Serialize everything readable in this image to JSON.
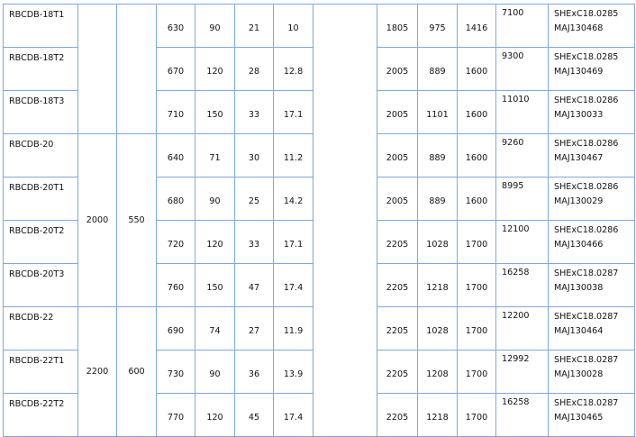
{
  "table": {
    "rows": [
      {
        "model": "RBCDB-18T1",
        "c4": "630",
        "c5": "90",
        "c6": "21",
        "c7": "10",
        "c9": "1805",
        "c10": "975",
        "c11": "1416",
        "weight": "7100",
        "cert1": "SHExC18.0285",
        "cert2": "MAJ130468"
      },
      {
        "model": "RBCDB-18T2",
        "c4": "670",
        "c5": "120",
        "c6": "28",
        "c7": "12.8",
        "c9": "2005",
        "c10": "889",
        "c11": "1600",
        "weight": "9300",
        "cert1": "SHExC18.0285",
        "cert2": "MAJ130469"
      },
      {
        "model": "RBCDB-18T3",
        "c4": "710",
        "c5": "150",
        "c6": "33",
        "c7": "17.1",
        "c9": "2005",
        "c10": "1101",
        "c11": "1600",
        "weight": "11010",
        "cert1": "SHExC18.0286",
        "cert2": "MAJ130033"
      },
      {
        "model": "RBCDB-20",
        "c4": "640",
        "c5": "71",
        "c6": "30",
        "c7": "11.2",
        "c9": "2005",
        "c10": "889",
        "c11": "1600",
        "weight": "9260",
        "cert1": "SHExC18.0286",
        "cert2": "MAJ130467"
      },
      {
        "model": "RBCDB-20T1",
        "c4": "680",
        "c5": "90",
        "c6": "25",
        "c7": "14.2",
        "c9": "2005",
        "c10": "889",
        "c11": "1600",
        "weight": "8995",
        "cert1": "SHExC18.0286",
        "cert2": "MAJ130029"
      },
      {
        "model": "RBCDB-20T2",
        "c4": "720",
        "c5": "120",
        "c6": "33",
        "c7": "17.1",
        "c9": "2205",
        "c10": "1028",
        "c11": "1700",
        "weight": "12100",
        "cert1": "SHExC18.0286",
        "cert2": "MAJ130466"
      },
      {
        "model": "RBCDB-20T3",
        "c4": "760",
        "c5": "150",
        "c6": "47",
        "c7": "17.4",
        "c9": "2205",
        "c10": "1218",
        "c11": "1700",
        "weight": "16258",
        "cert1": "SHExC18.0287",
        "cert2": "MAJ130038"
      },
      {
        "model": "RBCDB-22",
        "c4": "690",
        "c5": "74",
        "c6": "27",
        "c7": "11.9",
        "c9": "2205",
        "c10": "1028",
        "c11": "1700",
        "weight": "12200",
        "cert1": "SHExC18.0287",
        "cert2": "MAJ130464"
      },
      {
        "model": "RBCDB-22T1",
        "c4": "730",
        "c5": "90",
        "c6": "36",
        "c7": "13.9",
        "c9": "2205",
        "c10": "1208",
        "c11": "1700",
        "weight": "12992",
        "cert1": "SHExC18.0287",
        "cert2": "MAJ130028"
      },
      {
        "model": "RBCDB-22T2",
        "c4": "770",
        "c5": "120",
        "c6": "45",
        "c7": "17.4",
        "c9": "2205",
        "c10": "1218",
        "c11": "1700",
        "weight": "16258",
        "cert1": "SHExC18.0287",
        "cert2": "MAJ130465"
      }
    ],
    "groups": [
      {
        "start": 0,
        "span": 3,
        "c2": "",
        "c3": ""
      },
      {
        "start": 3,
        "span": 4,
        "c2": "2000",
        "c3": "550"
      },
      {
        "start": 7,
        "span": 3,
        "c2": "2200",
        "c3": "600"
      }
    ],
    "border_color": "#7fa9dd"
  }
}
